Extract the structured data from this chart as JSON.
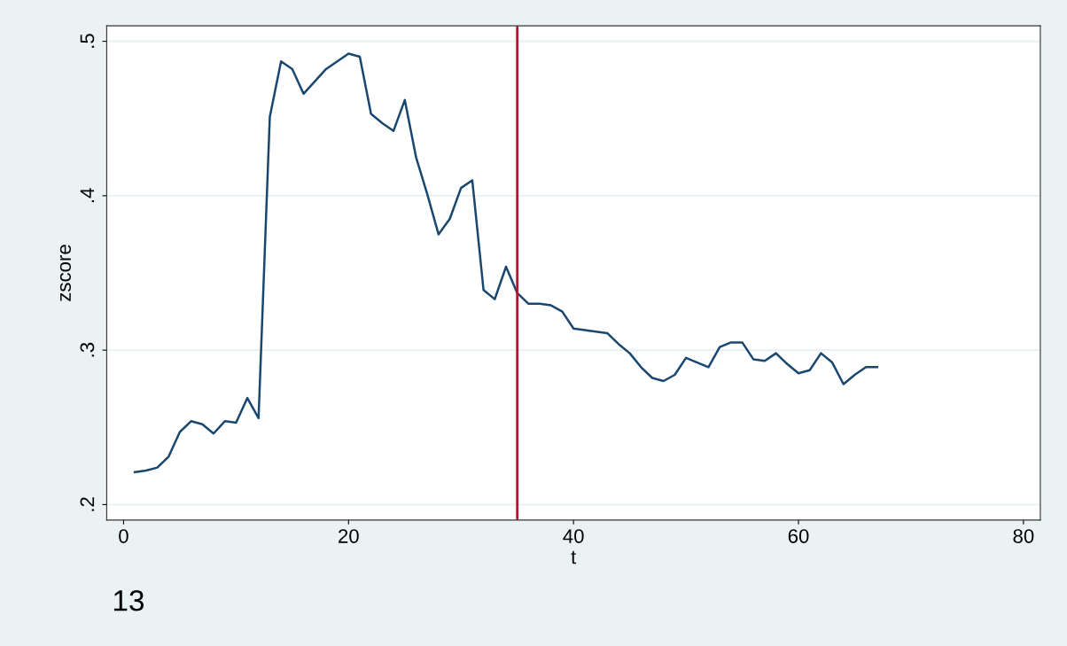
{
  "chart_data": {
    "type": "line",
    "xlabel": "t",
    "ylabel": "zscore",
    "x": [
      1,
      2,
      3,
      4,
      5,
      6,
      7,
      8,
      9,
      10,
      11,
      12,
      13,
      14,
      15,
      16,
      17,
      18,
      19,
      20,
      21,
      22,
      23,
      24,
      25,
      26,
      27,
      28,
      29,
      30,
      31,
      32,
      33,
      34,
      35,
      36,
      37,
      38,
      39,
      40,
      41,
      42,
      43,
      44,
      45,
      46,
      47,
      48,
      49,
      50,
      51,
      52,
      53,
      54,
      55,
      56,
      57,
      58,
      59,
      60,
      61,
      62,
      63,
      64,
      65,
      66,
      67
    ],
    "series": [
      {
        "color": "#1a476f",
        "values": [
          0.221,
          0.222,
          0.224,
          0.231,
          0.247,
          0.254,
          0.252,
          0.246,
          0.254,
          0.253,
          0.269,
          0.256,
          0.451,
          0.487,
          0.482,
          0.466,
          0.474,
          0.482,
          0.487,
          0.492,
          0.49,
          0.453,
          0.447,
          0.442,
          0.462,
          0.425,
          0.401,
          0.375,
          0.385,
          0.405,
          0.41,
          0.339,
          0.333,
          0.354,
          0.337,
          0.33,
          0.33,
          0.329,
          0.325,
          0.314,
          0.313,
          0.312,
          0.311,
          0.304,
          0.298,
          0.289,
          0.282,
          0.28,
          0.284,
          0.295,
          0.292,
          0.289,
          0.302,
          0.305,
          0.305,
          0.294,
          0.293,
          0.298,
          0.291,
          0.285,
          0.287,
          0.298,
          0.292,
          0.278,
          0.284,
          0.289,
          0.289
        ]
      }
    ],
    "xlim": [
      -1.5,
      81.5
    ],
    "ylim": [
      0.19,
      0.51
    ],
    "xticks": [
      0,
      20,
      40,
      60,
      80
    ],
    "yticks": [
      {
        "value": 0.2,
        "label": ".2"
      },
      {
        "value": 0.3,
        "label": ".3"
      },
      {
        "value": 0.4,
        "label": ".4"
      },
      {
        "value": 0.5,
        "label": ".5"
      }
    ],
    "grid": "y",
    "marker": "none",
    "line_style": "solid",
    "ref_lines": [
      {
        "axis": "x",
        "value": 35,
        "color": "#b2182b"
      }
    ],
    "annotations": [
      "13"
    ]
  }
}
